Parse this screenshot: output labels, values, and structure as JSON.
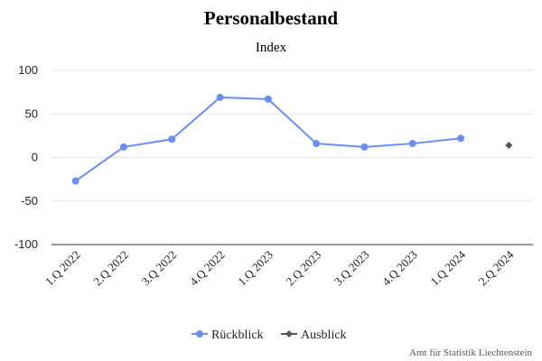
{
  "chart_data": {
    "type": "line",
    "title": "Personalbestand",
    "subtitle": "Index",
    "categories": [
      "1.Q 2022",
      "2.Q 2022",
      "3.Q 2022",
      "4.Q 2022",
      "1.Q 2023",
      "2.Q 2023",
      "3.Q 2023",
      "4.Q 2023",
      "1.Q 2024",
      "2.Q 2024"
    ],
    "ylim": [
      -100,
      100
    ],
    "yticks": [
      "100",
      "50",
      "0",
      "-50",
      "-100"
    ],
    "grid": true,
    "legend_position": "bottom",
    "series": [
      {
        "name": "Rückblick",
        "color": "#6a8ff0",
        "marker": "circle",
        "values": [
          -27,
          12,
          21,
          69,
          67,
          16,
          12,
          16,
          22,
          null
        ]
      },
      {
        "name": "Ausblick",
        "color": "#555555",
        "marker": "diamond",
        "values": [
          null,
          null,
          null,
          null,
          null,
          null,
          null,
          null,
          null,
          14
        ]
      }
    ],
    "credit": "Amt für Statistik Liechtenstein"
  }
}
